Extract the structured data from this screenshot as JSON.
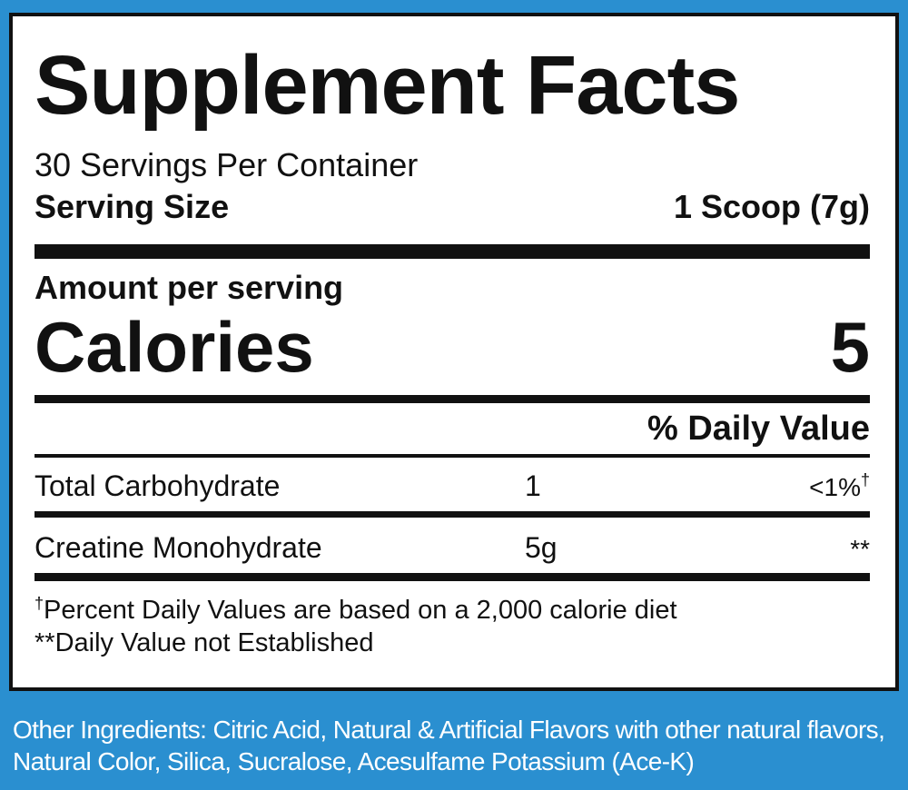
{
  "label": {
    "title": "Supplement Facts",
    "servings_per_container": "30 Servings Per Container",
    "serving_size_label": "Serving Size",
    "serving_size_value": "1 Scoop (7g)",
    "amount_per_serving": "Amount per serving",
    "calories_label": "Calories",
    "calories_value": "5",
    "daily_value_header": "% Daily Value",
    "nutrients": [
      {
        "name": "Total Carbohydrate",
        "amount": "1",
        "daily_value": "<1%",
        "daily_value_mark": "†"
      },
      {
        "name": "Creatine Monohydrate",
        "amount": "5g",
        "daily_value": "**",
        "daily_value_mark": ""
      }
    ],
    "footnote_1_mark": "†",
    "footnote_1": "Percent Daily Values are based on a 2,000 calorie diet",
    "footnote_2": "**Daily Value not Established"
  },
  "other_ingredients": "Other Ingredients: Citric Acid, Natural & Artificial Flavors with other natural flavors, Natural Color, Silica, Sucralose, Acesulfame Potassium (Ace-K)",
  "colors": {
    "background": "#2a8fd0",
    "panel": "#ffffff",
    "text": "#111111"
  }
}
